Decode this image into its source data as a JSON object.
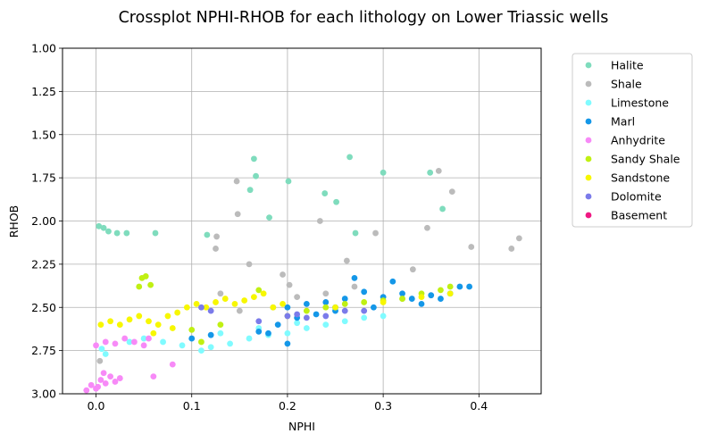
{
  "chart_data": {
    "type": "scatter",
    "title": "Crossplot NPHI-RHOB for each lithology on Lower Triassic wells",
    "xlabel": "NPHI",
    "ylabel": "RHOB",
    "xlim": [
      -0.035,
      0.465
    ],
    "ylim": [
      3.0,
      1.0
    ],
    "y_inverted": true,
    "grid": true,
    "legend_position": "outside-right",
    "x_ticks": [
      "0.0",
      "0.1",
      "0.2",
      "0.3",
      "0.4"
    ],
    "x_tick_values": [
      0.0,
      0.1,
      0.2,
      0.3,
      0.4
    ],
    "y_ticks": [
      "1.00",
      "1.25",
      "1.50",
      "1.75",
      "2.00",
      "2.25",
      "2.50",
      "2.75",
      "3.00"
    ],
    "y_tick_values": [
      1.0,
      1.25,
      1.5,
      1.75,
      2.0,
      2.25,
      2.5,
      2.75,
      3.0
    ],
    "series": [
      {
        "name": "Halite",
        "color": "#7fdcbd",
        "points": [
          [
            0.003,
            2.03
          ],
          [
            0.008,
            2.04
          ],
          [
            0.013,
            2.06
          ],
          [
            0.022,
            2.07
          ],
          [
            0.032,
            2.07
          ],
          [
            0.062,
            2.07
          ],
          [
            0.116,
            2.08
          ],
          [
            0.165,
            1.64
          ],
          [
            0.167,
            1.74
          ],
          [
            0.161,
            1.82
          ],
          [
            0.201,
            1.77
          ],
          [
            0.181,
            1.98
          ],
          [
            0.239,
            1.84
          ],
          [
            0.251,
            1.89
          ],
          [
            0.265,
            1.63
          ],
          [
            0.271,
            2.07
          ],
          [
            0.3,
            1.72
          ],
          [
            0.349,
            1.72
          ],
          [
            0.362,
            1.93
          ]
        ]
      },
      {
        "name": "Shale",
        "color": "#bbbbbb",
        "points": [
          [
            0.004,
            2.81
          ],
          [
            0.125,
            2.16
          ],
          [
            0.126,
            2.09
          ],
          [
            0.147,
            1.77
          ],
          [
            0.148,
            1.96
          ],
          [
            0.16,
            2.25
          ],
          [
            0.195,
            2.31
          ],
          [
            0.202,
            2.37
          ],
          [
            0.234,
            2.0
          ],
          [
            0.262,
            2.23
          ],
          [
            0.292,
            2.07
          ],
          [
            0.331,
            2.28
          ],
          [
            0.346,
            2.04
          ],
          [
            0.358,
            1.71
          ],
          [
            0.372,
            1.83
          ],
          [
            0.392,
            2.15
          ],
          [
            0.434,
            2.16
          ],
          [
            0.442,
            2.1
          ],
          [
            0.24,
            2.42
          ],
          [
            0.21,
            2.44
          ],
          [
            0.185,
            2.5
          ],
          [
            0.27,
            2.38
          ],
          [
            0.15,
            2.52
          ],
          [
            0.32,
            2.45
          ],
          [
            0.13,
            2.42
          ]
        ]
      },
      {
        "name": "Limestone",
        "color": "#80fbff",
        "points": [
          [
            0.006,
            2.74
          ],
          [
            0.01,
            2.77
          ],
          [
            0.035,
            2.7
          ],
          [
            0.05,
            2.68
          ],
          [
            0.07,
            2.7
          ],
          [
            0.09,
            2.72
          ],
          [
            0.11,
            2.75
          ],
          [
            0.12,
            2.73
          ],
          [
            0.14,
            2.71
          ],
          [
            0.16,
            2.68
          ],
          [
            0.18,
            2.66
          ],
          [
            0.2,
            2.65
          ],
          [
            0.22,
            2.62
          ],
          [
            0.24,
            2.6
          ],
          [
            0.26,
            2.58
          ],
          [
            0.28,
            2.56
          ],
          [
            0.3,
            2.55
          ],
          [
            0.13,
            2.65
          ],
          [
            0.17,
            2.62
          ],
          [
            0.21,
            2.59
          ]
        ]
      },
      {
        "name": "Marl",
        "color": "#1497e8",
        "points": [
          [
            0.1,
            2.68
          ],
          [
            0.12,
            2.66
          ],
          [
            0.2,
            2.71
          ],
          [
            0.18,
            2.65
          ],
          [
            0.17,
            2.64
          ],
          [
            0.2,
            2.5
          ],
          [
            0.22,
            2.48
          ],
          [
            0.24,
            2.47
          ],
          [
            0.25,
            2.5
          ],
          [
            0.26,
            2.45
          ],
          [
            0.27,
            2.33
          ],
          [
            0.28,
            2.41
          ],
          [
            0.3,
            2.44
          ],
          [
            0.31,
            2.35
          ],
          [
            0.32,
            2.42
          ],
          [
            0.33,
            2.45
          ],
          [
            0.34,
            2.48
          ],
          [
            0.35,
            2.43
          ],
          [
            0.36,
            2.45
          ],
          [
            0.37,
            2.42
          ],
          [
            0.38,
            2.38
          ],
          [
            0.39,
            2.38
          ],
          [
            0.29,
            2.5
          ],
          [
            0.23,
            2.54
          ],
          [
            0.19,
            2.6
          ],
          [
            0.21,
            2.56
          ],
          [
            0.25,
            2.52
          ]
        ]
      },
      {
        "name": "Anhydrite",
        "color": "#f78af7",
        "points": [
          [
            -0.01,
            2.98
          ],
          [
            -0.005,
            2.95
          ],
          [
            0.0,
            2.97
          ],
          [
            0.005,
            2.92
          ],
          [
            0.01,
            2.94
          ],
          [
            0.015,
            2.9
          ],
          [
            0.02,
            2.93
          ],
          [
            0.025,
            2.91
          ],
          [
            0.002,
            2.96
          ],
          [
            0.008,
            2.88
          ],
          [
            0.0,
            2.72
          ],
          [
            0.01,
            2.7
          ],
          [
            0.02,
            2.71
          ],
          [
            0.03,
            2.68
          ],
          [
            0.04,
            2.7
          ],
          [
            0.05,
            2.72
          ],
          [
            0.055,
            2.68
          ],
          [
            0.06,
            2.9
          ],
          [
            0.08,
            2.83
          ]
        ]
      },
      {
        "name": "Sandy Shale",
        "color": "#c0f012",
        "points": [
          [
            0.045,
            2.38
          ],
          [
            0.048,
            2.33
          ],
          [
            0.052,
            2.32
          ],
          [
            0.057,
            2.37
          ],
          [
            0.1,
            2.63
          ],
          [
            0.11,
            2.7
          ],
          [
            0.13,
            2.6
          ],
          [
            0.17,
            2.4
          ],
          [
            0.2,
            2.55
          ],
          [
            0.22,
            2.52
          ],
          [
            0.24,
            2.5
          ],
          [
            0.26,
            2.48
          ],
          [
            0.28,
            2.47
          ],
          [
            0.3,
            2.46
          ],
          [
            0.32,
            2.45
          ],
          [
            0.34,
            2.42
          ],
          [
            0.36,
            2.4
          ],
          [
            0.37,
            2.38
          ]
        ]
      },
      {
        "name": "Sandstone",
        "color": "#f7f700",
        "points": [
          [
            0.005,
            2.6
          ],
          [
            0.015,
            2.58
          ],
          [
            0.025,
            2.6
          ],
          [
            0.035,
            2.57
          ],
          [
            0.045,
            2.55
          ],
          [
            0.055,
            2.58
          ],
          [
            0.065,
            2.6
          ],
          [
            0.075,
            2.55
          ],
          [
            0.085,
            2.53
          ],
          [
            0.095,
            2.5
          ],
          [
            0.105,
            2.48
          ],
          [
            0.115,
            2.5
          ],
          [
            0.125,
            2.47
          ],
          [
            0.135,
            2.45
          ],
          [
            0.145,
            2.48
          ],
          [
            0.155,
            2.46
          ],
          [
            0.165,
            2.44
          ],
          [
            0.175,
            2.42
          ],
          [
            0.185,
            2.5
          ],
          [
            0.195,
            2.48
          ],
          [
            0.25,
            2.5
          ],
          [
            0.3,
            2.47
          ],
          [
            0.34,
            2.44
          ],
          [
            0.37,
            2.42
          ],
          [
            0.06,
            2.65
          ],
          [
            0.08,
            2.62
          ]
        ]
      },
      {
        "name": "Dolomite",
        "color": "#7b7bea",
        "points": [
          [
            0.11,
            2.5
          ],
          [
            0.12,
            2.52
          ],
          [
            0.2,
            2.55
          ],
          [
            0.21,
            2.54
          ],
          [
            0.22,
            2.56
          ],
          [
            0.24,
            2.55
          ],
          [
            0.26,
            2.52
          ],
          [
            0.28,
            2.52
          ],
          [
            0.17,
            2.58
          ]
        ]
      },
      {
        "name": "Basement",
        "color": "#ef1883",
        "points": []
      }
    ]
  }
}
